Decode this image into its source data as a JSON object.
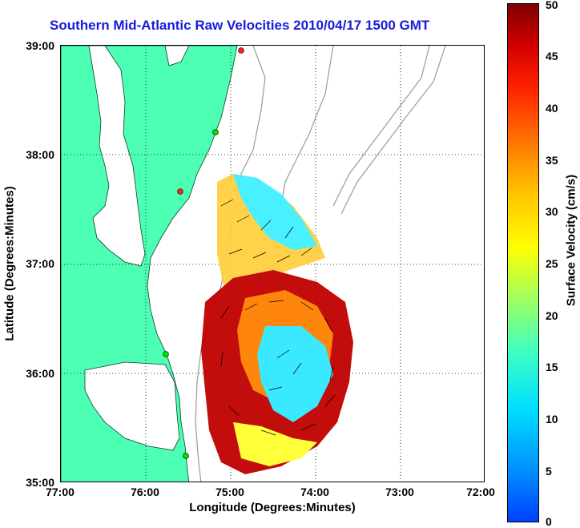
{
  "title": "Southern Mid-Atlantic Raw Velocities 2010/04/17 1500 GMT",
  "xlabel": "Longitude (Degrees:Minutes)",
  "ylabel": "Latitude (Degrees:Minutes)",
  "xticks": [
    "77:00",
    "76:00",
    "75:00",
    "74:00",
    "73:00",
    "72:00"
  ],
  "yticks": [
    "39:00",
    "38:00",
    "37:00",
    "36:00",
    "35:00"
  ],
  "colorbar": {
    "label": "Surface Velocity (cm/s)",
    "ticks": [
      "50",
      "45",
      "40",
      "35",
      "30",
      "25",
      "20",
      "15",
      "10",
      "5",
      "0"
    ]
  },
  "colors": {
    "title": "#1a1adc",
    "land": "#4dffb3",
    "bathymetry": "#9a9a9a",
    "station_active": "#00dd00",
    "station_inactive": "#ff2020"
  }
}
